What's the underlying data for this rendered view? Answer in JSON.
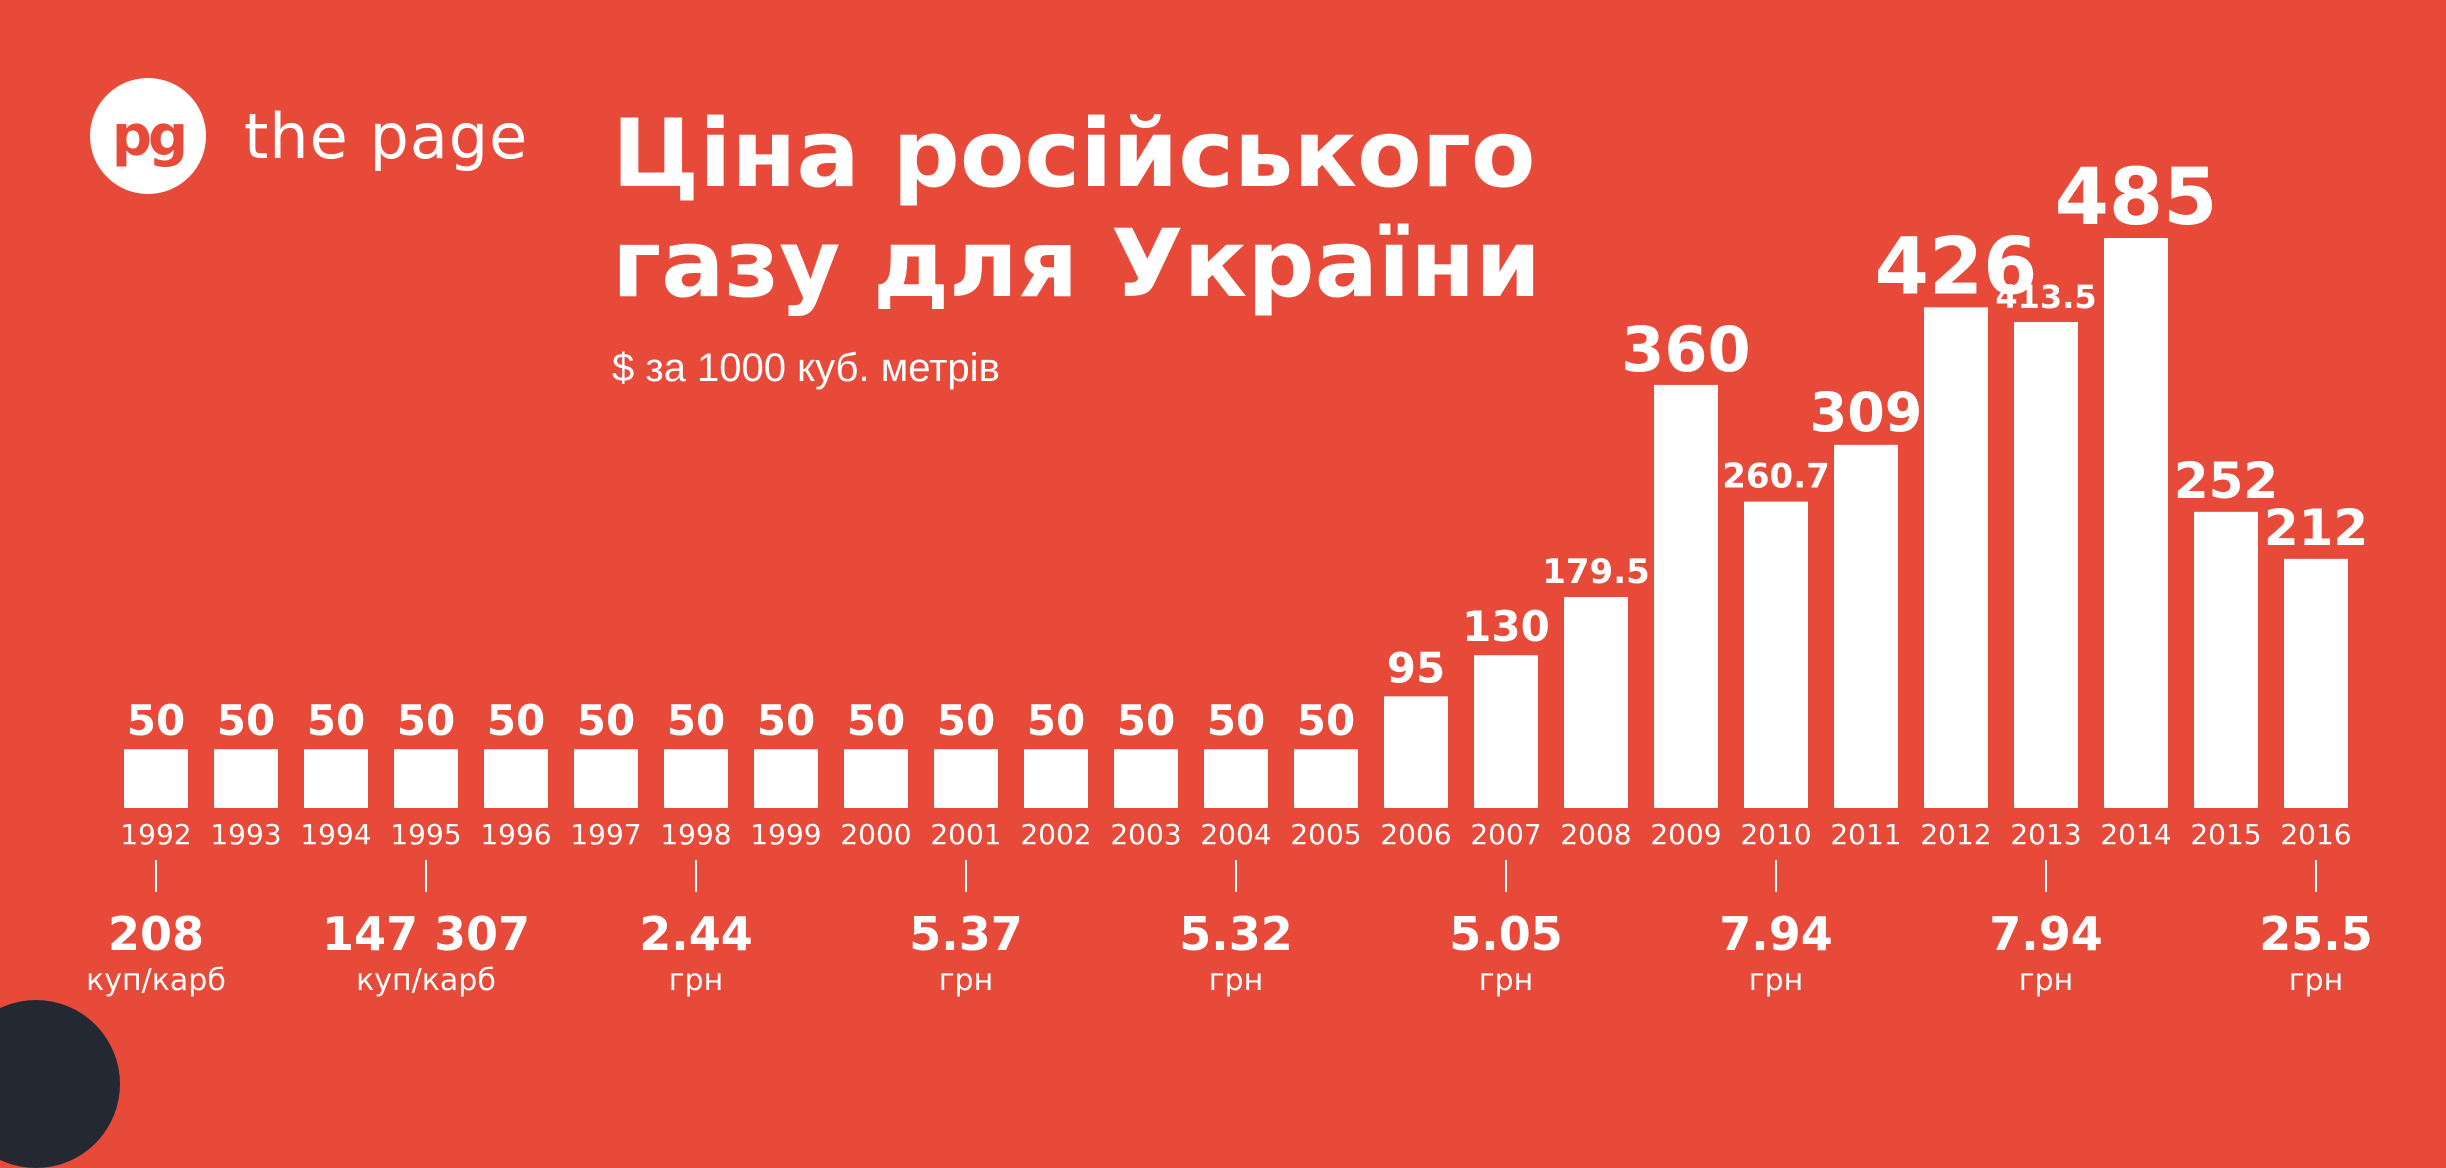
{
  "brand": {
    "logo": "pg",
    "name": "the page"
  },
  "title_line1": "Ціна російського",
  "title_line2": "газу для України",
  "subtitle": "$ за 1000 куб. метрів",
  "colors": {
    "background": "#E84A3A",
    "bar": "#ffffff",
    "text": "#ffffff",
    "corner_circle": "#242833"
  },
  "chart_data": {
    "type": "bar",
    "categories": [
      "1992",
      "1993",
      "1994",
      "1995",
      "1996",
      "1997",
      "1998",
      "1999",
      "2000",
      "2001",
      "2002",
      "2003",
      "2004",
      "2005",
      "2006",
      "2007",
      "2008",
      "2009",
      "2010",
      "2011",
      "2012",
      "2013",
      "2014",
      "2015",
      "2016"
    ],
    "values": [
      50,
      50,
      50,
      50,
      50,
      50,
      50,
      50,
      50,
      50,
      50,
      50,
      50,
      50,
      95,
      130,
      179.5,
      360,
      260.7,
      309,
      426,
      413.5,
      485,
      252,
      212
    ],
    "value_labels": [
      "50",
      "50",
      "50",
      "50",
      "50",
      "50",
      "50",
      "50",
      "50",
      "50",
      "50",
      "50",
      "50",
      "50",
      "95",
      "130",
      "179.5",
      "360",
      "260.7",
      "309",
      "426",
      "413.5",
      "485",
      "252",
      "212"
    ],
    "ylim": [
      0,
      485
    ],
    "grid": false,
    "local_prices": [
      {
        "year": "1992",
        "value": "208",
        "unit": "куп/карб"
      },
      {
        "year": "1995",
        "value": "147 307",
        "unit": "куп/карб"
      },
      {
        "year": "1998",
        "value": "2.44",
        "unit": "грн"
      },
      {
        "year": "2001",
        "value": "5.37",
        "unit": "грн"
      },
      {
        "year": "2004",
        "value": "5.32",
        "unit": "грн"
      },
      {
        "year": "2007",
        "value": "5.05",
        "unit": "грн"
      },
      {
        "year": "2010",
        "value": "7.94",
        "unit": "грн"
      },
      {
        "year": "2013",
        "value": "7.94",
        "unit": "грн"
      },
      {
        "year": "2016",
        "value": "25.5",
        "unit": "грн"
      }
    ]
  }
}
